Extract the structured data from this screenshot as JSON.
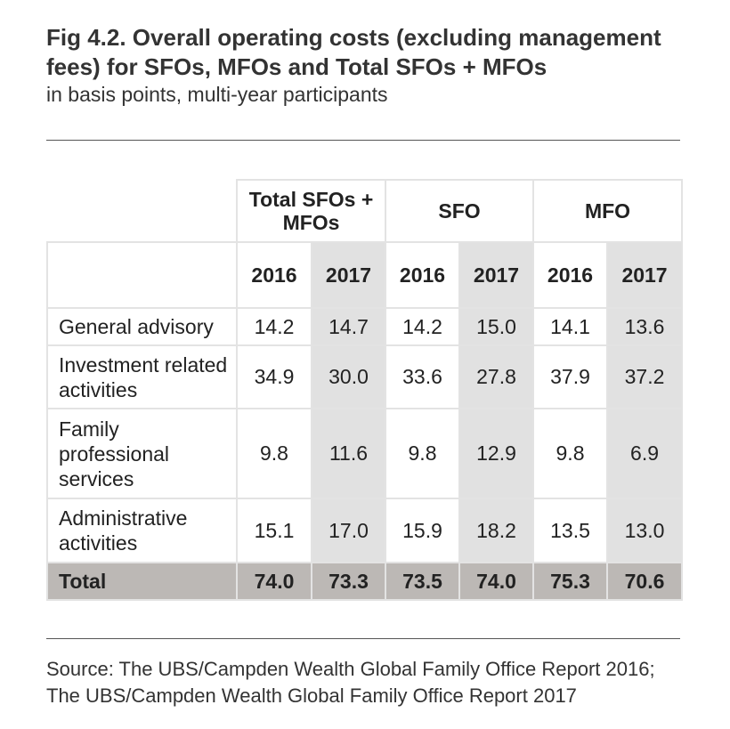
{
  "title": "Fig 4.2. Overall operating costs (excluding management fees) for SFOs, MFOs and Total SFOs + MFOs",
  "subtitle": "in basis points, multi-year participants",
  "table": {
    "groups": [
      "Total SFOs + MFOs",
      "SFO",
      "MFO"
    ],
    "years": [
      "2016",
      "2017",
      "2016",
      "2017",
      "2016",
      "2017"
    ],
    "rows": [
      {
        "label": "General advisory",
        "values": [
          "14.2",
          "14.7",
          "14.2",
          "15.0",
          "14.1",
          "13.6"
        ]
      },
      {
        "label": "Investment related activities",
        "values": [
          "34.9",
          "30.0",
          "33.6",
          "27.8",
          "37.9",
          "37.2"
        ]
      },
      {
        "label": "Family professional services",
        "values": [
          "9.8",
          "11.6",
          "9.8",
          "12.9",
          "9.8",
          "6.9"
        ]
      },
      {
        "label": "Administrative activities",
        "values": [
          "15.1",
          "17.0",
          "15.9",
          "18.2",
          "13.5",
          "13.0"
        ]
      }
    ],
    "total": {
      "label": "Total",
      "values": [
        "74.0",
        "73.3",
        "73.5",
        "74.0",
        "75.3",
        "70.6"
      ]
    }
  },
  "source_line1": "Source: The UBS/Campden Wealth Global Family Office Report 2016;",
  "source_line2": "The UBS/Campden Wealth Global Family Office Report 2017"
}
